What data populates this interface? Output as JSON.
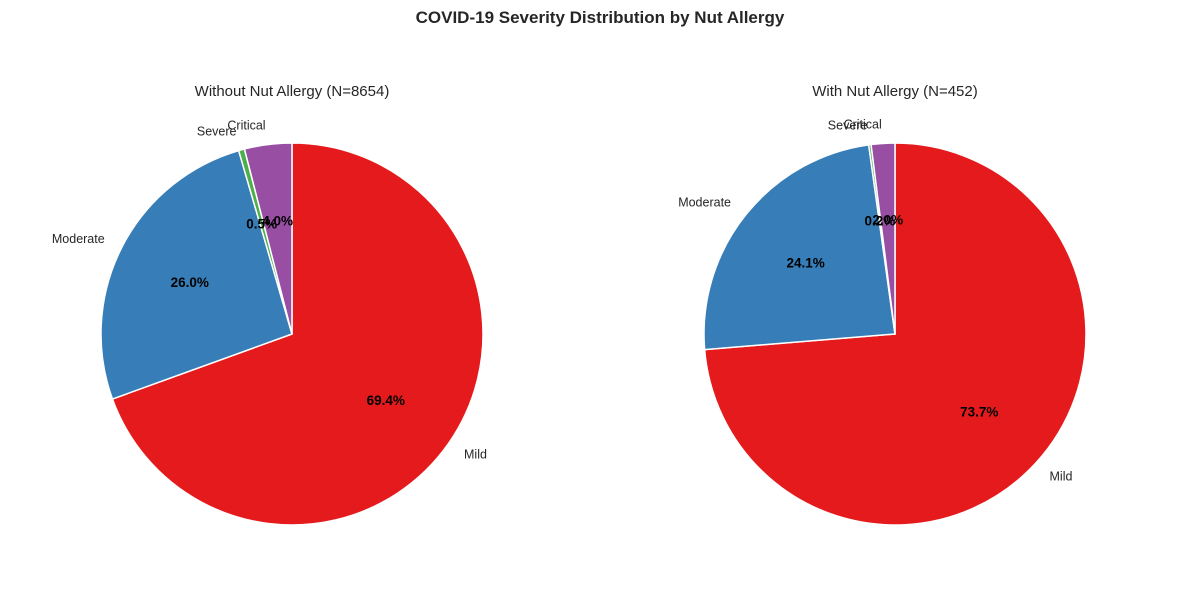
{
  "title": "COVID-19 Severity Distribution by Nut Allergy",
  "colors": {
    "Mild": "#e41a1c",
    "Moderate": "#377eb8",
    "Severe": "#4daf4a",
    "Critical": "#984ea3"
  },
  "chart_data": [
    {
      "type": "pie",
      "title": "Without Nut Allergy (N=8654)",
      "categories": [
        "Mild",
        "Moderate",
        "Severe",
        "Critical"
      ],
      "values": [
        69.4,
        26.0,
        0.5,
        4.0
      ],
      "value_labels": [
        "69.4%",
        "26.0%",
        "0.5%",
        "4.0%"
      ],
      "start_angle_deg": 90,
      "direction": "clockwise"
    },
    {
      "type": "pie",
      "title": "With Nut Allergy (N=452)",
      "categories": [
        "Mild",
        "Moderate",
        "Severe",
        "Critical"
      ],
      "values": [
        73.7,
        24.1,
        0.2,
        2.0
      ],
      "value_labels": [
        "73.7%",
        "24.1%",
        "0.2%",
        "2.0%"
      ],
      "start_angle_deg": 90,
      "direction": "clockwise"
    }
  ]
}
